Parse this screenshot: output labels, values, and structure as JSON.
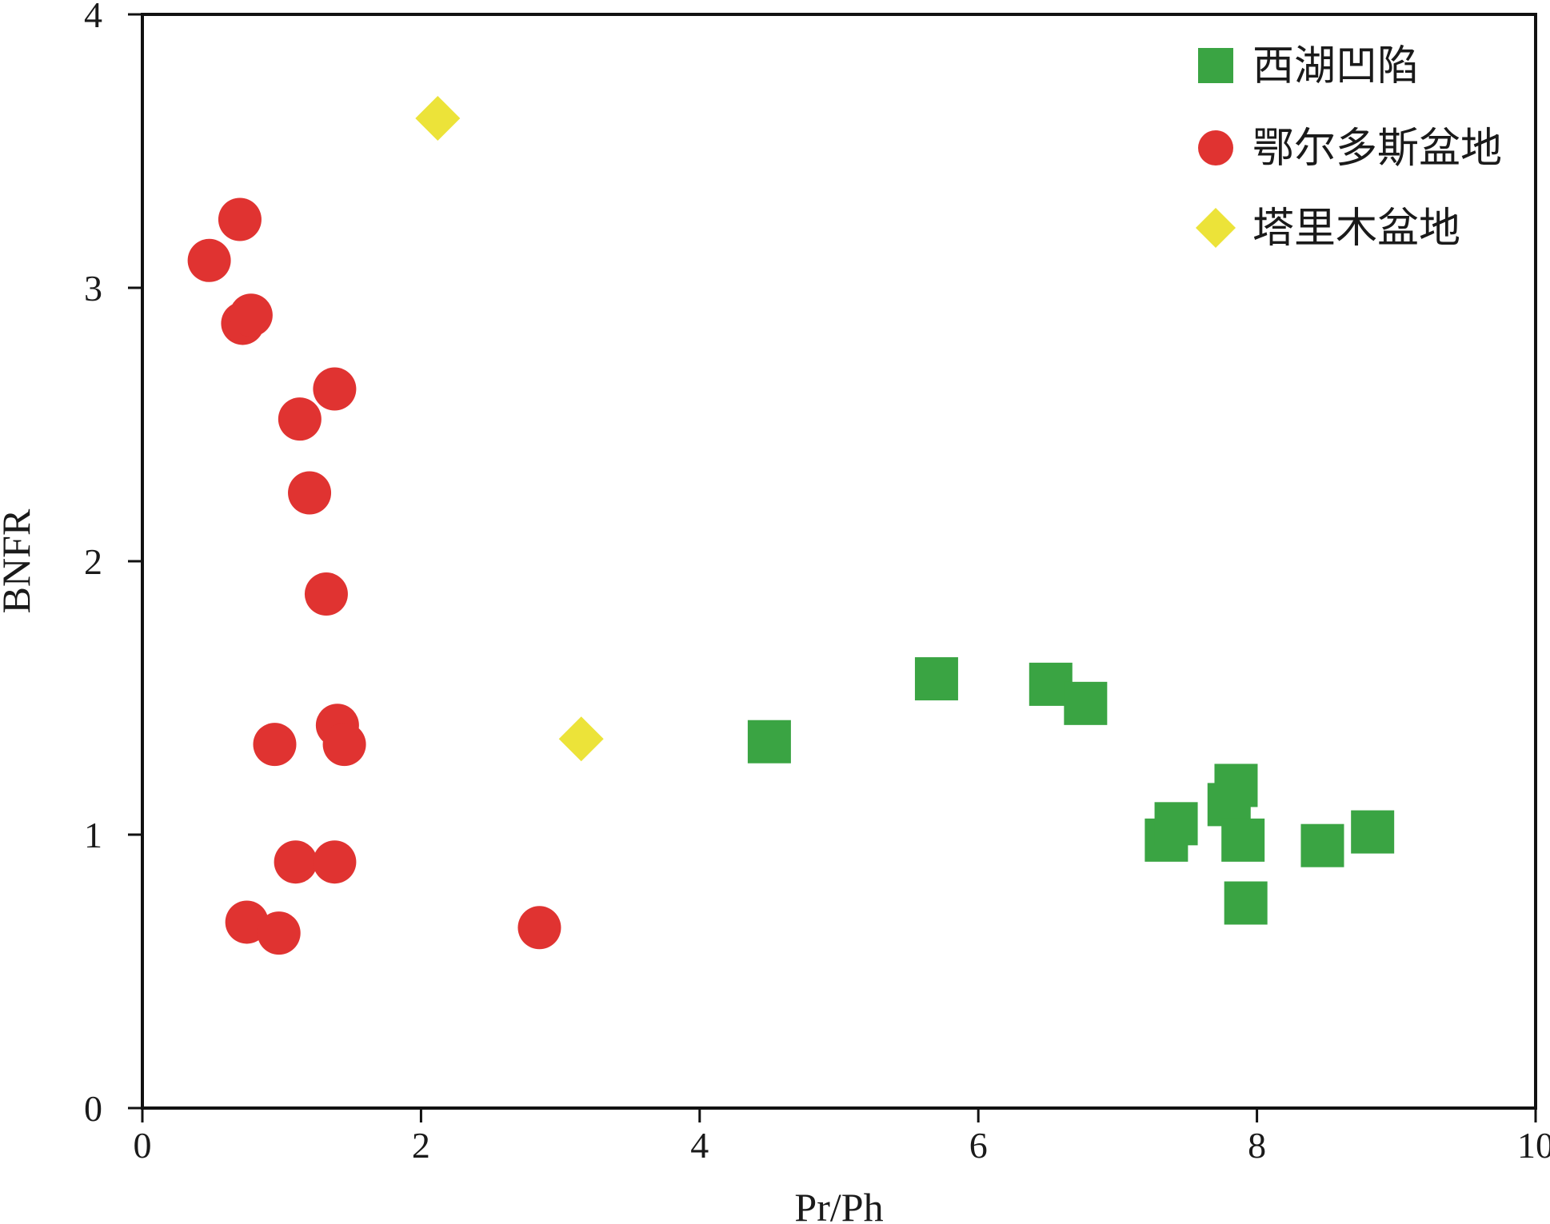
{
  "chart_data": {
    "type": "scatter",
    "title": "",
    "xlabel": "Pr/Ph",
    "ylabel": "BNFR",
    "xlim": [
      0,
      10
    ],
    "ylim": [
      0,
      4
    ],
    "xticks": [
      "0",
      "2",
      "4",
      "6",
      "8",
      "10"
    ],
    "yticks": [
      "0",
      "1",
      "2",
      "3",
      "4"
    ],
    "grid": false,
    "legend_position": "top-right",
    "series": [
      {
        "name": "西湖凹陷",
        "marker": "square",
        "color": "#3aa443",
        "points": [
          [
            4.5,
            1.34
          ],
          [
            5.7,
            1.57
          ],
          [
            6.52,
            1.55
          ],
          [
            6.77,
            1.48
          ],
          [
            7.35,
            0.98
          ],
          [
            7.42,
            1.04
          ],
          [
            7.8,
            1.11
          ],
          [
            7.85,
            1.18
          ],
          [
            7.9,
            0.98
          ],
          [
            7.92,
            0.75
          ],
          [
            8.47,
            0.96
          ],
          [
            8.83,
            1.01
          ]
        ]
      },
      {
        "name": "鄂尔多斯盆地",
        "marker": "circle",
        "color": "#e03331",
        "points": [
          [
            0.48,
            3.1
          ],
          [
            0.7,
            3.25
          ],
          [
            0.72,
            2.87
          ],
          [
            0.78,
            2.9
          ],
          [
            0.75,
            0.68
          ],
          [
            0.98,
            0.64
          ],
          [
            0.95,
            1.33
          ],
          [
            1.1,
            0.9
          ],
          [
            1.13,
            2.52
          ],
          [
            1.2,
            2.25
          ],
          [
            1.32,
            1.88
          ],
          [
            1.38,
            2.63
          ],
          [
            1.4,
            1.4
          ],
          [
            1.45,
            1.33
          ],
          [
            1.38,
            0.9
          ],
          [
            2.85,
            0.66
          ]
        ]
      },
      {
        "name": "塔里木盆地",
        "marker": "diamond",
        "color": "#ece339",
        "points": [
          [
            2.12,
            3.62
          ],
          [
            3.15,
            1.35
          ]
        ]
      }
    ]
  }
}
